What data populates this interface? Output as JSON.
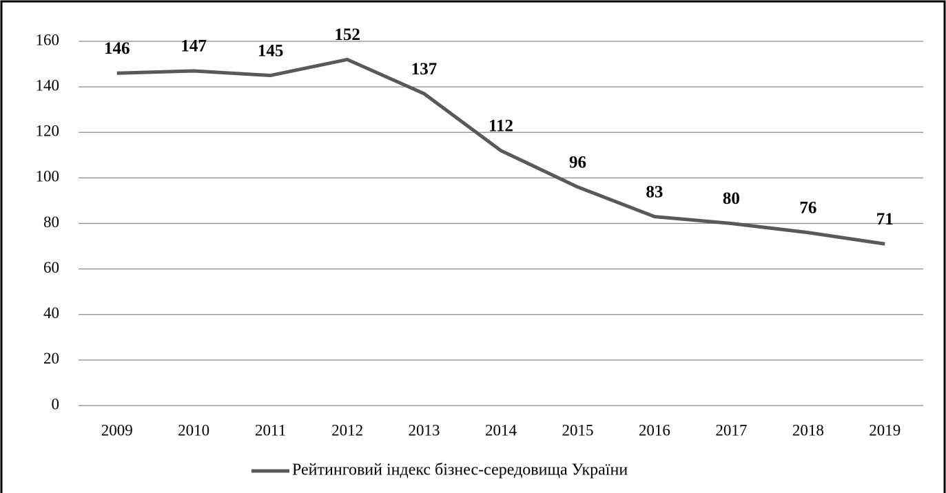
{
  "chart_data": {
    "type": "line",
    "categories": [
      "2009",
      "2010",
      "2011",
      "2012",
      "2013",
      "2014",
      "2015",
      "2016",
      "2017",
      "2018",
      "2019"
    ],
    "series": [
      {
        "name": "Рейтинговий індекс бізнес-середовища України",
        "color": "#595959",
        "values": [
          146,
          147,
          145,
          152,
          137,
          112,
          96,
          83,
          80,
          76,
          71
        ]
      }
    ],
    "ylim": [
      0,
      160
    ],
    "yticks": [
      0,
      20,
      40,
      60,
      80,
      100,
      120,
      140,
      160
    ],
    "grid": true,
    "legend": "bottom"
  }
}
